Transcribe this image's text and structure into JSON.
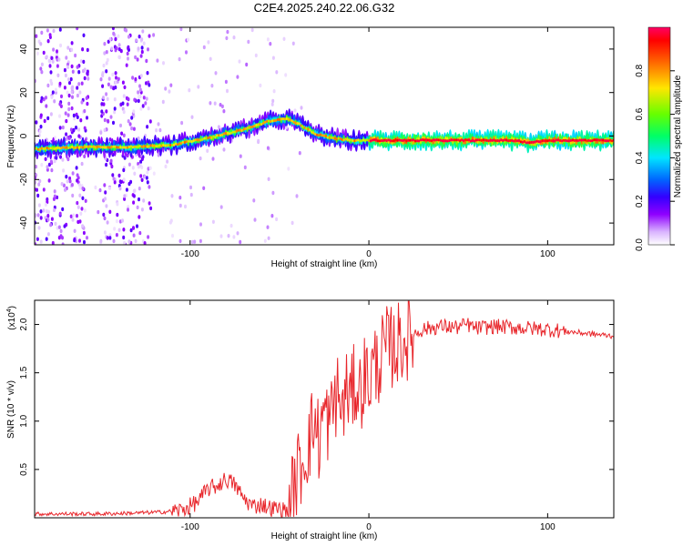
{
  "figure_title": "C2E4.2025.240.22.06.G32",
  "chart_data": [
    {
      "type": "heatmap",
      "title": "C2E4.2025.240.22.06.G32",
      "xlabel": "Height of straight line (km)",
      "ylabel": "Frequency (Hz)",
      "xlim": [
        -187,
        137
      ],
      "ylim": [
        -50,
        50
      ],
      "xticks": [
        -100,
        0,
        100
      ],
      "xtick_labels": [
        "-100",
        "0",
        "100"
      ],
      "yticks": [
        -40,
        -20,
        0,
        20,
        40
      ],
      "ytick_labels": [
        "-40",
        "-20",
        "0",
        "20",
        "40"
      ],
      "ridge": {
        "x": [
          -187,
          -160,
          -130,
          -110,
          -90,
          -70,
          -55,
          -45,
          -38,
          -30,
          -20,
          -10,
          0,
          10,
          40,
          80,
          90,
          100,
          137
        ],
        "freq_hz": [
          -6,
          -5,
          -5,
          -4,
          -1,
          3,
          7,
          8,
          5,
          1,
          -1,
          -2,
          -2,
          -2,
          -2,
          -2,
          -3,
          -2,
          -2
        ]
      },
      "colorbar": {
        "label": "Normalized spectral amplitude",
        "range": [
          0,
          1
        ],
        "ticks": [
          0.0,
          0.2,
          0.4,
          0.6,
          0.8
        ],
        "tick_labels": [
          "0.0",
          "0.2",
          "0.4",
          "0.6",
          "0.8"
        ],
        "colors": [
          "#ffffff",
          "#d9b3ff",
          "#8f00ff",
          "#3300ff",
          "#0066ff",
          "#00e5ff",
          "#00ff66",
          "#66ff00",
          "#ffe600",
          "#ff6600",
          "#ff0000",
          "#ff0066"
        ]
      }
    },
    {
      "type": "line",
      "xlabel": "Height of straight line (km)",
      "ylabel": "SNR (10 * v/v)",
      "scale_label": "(x10",
      "scale_exp": "4",
      "scale_close": ")",
      "xlim": [
        -187,
        137
      ],
      "ylim": [
        0,
        2.25
      ],
      "xticks": [
        -100,
        0,
        100
      ],
      "xtick_labels": [
        "-100",
        "0",
        "100"
      ],
      "yticks": [
        0.5,
        1.0,
        1.5,
        2.0
      ],
      "ytick_labels": [
        "0.5",
        "1.0",
        "1.5",
        "2.0"
      ],
      "line_color": "#e8262b",
      "series": [
        {
          "name": "SNR",
          "x": [
            -187,
            -170,
            -150,
            -130,
            -115,
            -105,
            -100,
            -95,
            -90,
            -85,
            -80,
            -78,
            -75,
            -70,
            -65,
            -60,
            -55,
            -50,
            -45,
            -42,
            -40,
            -38,
            -35,
            -32,
            -30,
            -28,
            -25,
            -22,
            -20,
            -18,
            -15,
            -12,
            -10,
            -8,
            -5,
            -2,
            0,
            2,
            5,
            8,
            10,
            15,
            20,
            25,
            30,
            40,
            50,
            55,
            60,
            70,
            80,
            90,
            100,
            110,
            120,
            137
          ],
          "y": [
            0.04,
            0.04,
            0.04,
            0.05,
            0.06,
            0.08,
            0.12,
            0.18,
            0.3,
            0.33,
            0.4,
            0.38,
            0.34,
            0.2,
            0.12,
            0.14,
            0.1,
            0.09,
            0.06,
            0.3,
            0.45,
            0.55,
            0.7,
            0.9,
            1.0,
            0.8,
            1.1,
            0.95,
            1.15,
            1.3,
            1.1,
            1.35,
            1.2,
            1.4,
            1.3,
            1.5,
            1.4,
            1.55,
            1.6,
            1.7,
            1.75,
            1.78,
            1.85,
            1.9,
            1.95,
            1.98,
            1.97,
            2.0,
            1.96,
            1.98,
            1.97,
            1.96,
            1.95,
            1.93,
            1.91,
            1.88
          ]
        }
      ]
    }
  ]
}
